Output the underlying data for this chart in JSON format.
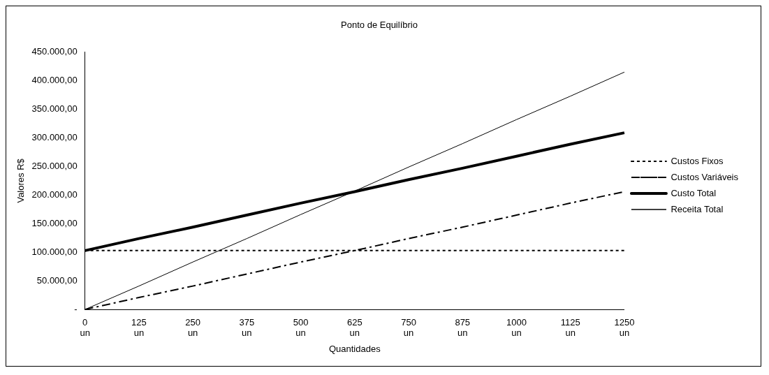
{
  "chart_data": {
    "type": "line",
    "title": "Ponto de Equilíbrio",
    "xlabel": "Quantidades",
    "ylabel": "Valores R$",
    "categories": [
      "0 un",
      "125 un",
      "250 un",
      "375 un",
      "500 un",
      "625 un",
      "750 un",
      "875 un",
      "1000 un",
      "1125 un",
      "1250 un"
    ],
    "series": [
      {
        "name": "Custos Fixos",
        "color": "#000000",
        "line_style": "dotted",
        "values": [
          103000,
          103000,
          103000,
          103000,
          103000,
          103000,
          103000,
          103000,
          103000,
          103000,
          103000
        ]
      },
      {
        "name": "Custos Variáveis",
        "color": "#000000",
        "line_style": "dashed",
        "values": [
          0,
          21000,
          41000,
          62000,
          83000,
          103000,
          124000,
          144000,
          165000,
          186000,
          206000
        ]
      },
      {
        "name": "Custo Total",
        "color": "#000000",
        "line_style": "solid",
        "values": [
          103000,
          124000,
          144000,
          165000,
          186000,
          206000,
          227000,
          247000,
          268000,
          289000,
          309000
        ]
      },
      {
        "name": "Receita Total",
        "color": "#000000",
        "line_style": "solid",
        "values": [
          0,
          41000,
          83000,
          124000,
          166000,
          207000,
          249000,
          290000,
          332000,
          373000,
          415000
        ]
      }
    ],
    "ylim": [
      0,
      450000
    ],
    "yticks": [
      {
        "value": 0,
        "label": "-"
      },
      {
        "value": 50000,
        "label": "50.000,00"
      },
      {
        "value": 100000,
        "label": "100.000,00"
      },
      {
        "value": 150000,
        "label": "150.000,00"
      },
      {
        "value": 200000,
        "label": "200.000,00"
      },
      {
        "value": 250000,
        "label": "250.000,00"
      },
      {
        "value": 300000,
        "label": "300.000,00"
      },
      {
        "value": 350000,
        "label": "350.000,00"
      },
      {
        "value": 400000,
        "label": "400.000,00"
      },
      {
        "value": 450000,
        "label": "450.000,00"
      }
    ],
    "grid": false,
    "legend": "right",
    "marker": "none"
  }
}
